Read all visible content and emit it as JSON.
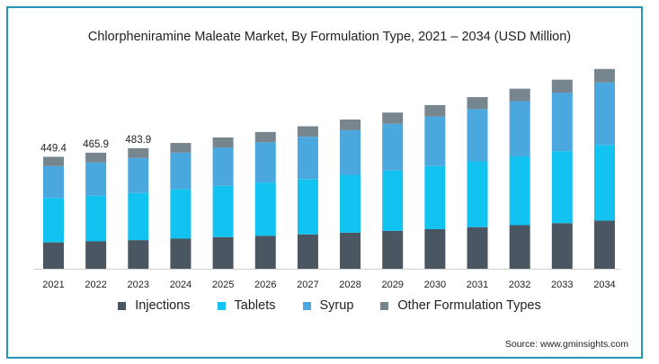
{
  "chart_data": {
    "type": "bar",
    "stacked": true,
    "title": "Chlorpheniramine Maleate Market, By Formulation Type, 2021 – 2034 (USD Million)",
    "categories": [
      "2021",
      "2022",
      "2023",
      "2024",
      "2025",
      "2026",
      "2027",
      "2028",
      "2029",
      "2030",
      "2031",
      "2032",
      "2033",
      "2034"
    ],
    "series": [
      {
        "name": "Injections",
        "color": "#4a5661",
        "values": [
          106,
          110,
          115,
          121,
          127,
          132,
          138,
          145,
          152,
          159,
          167,
          175,
          183,
          193
        ]
      },
      {
        "name": "Tablets",
        "color": "#12c2f0",
        "values": [
          178,
          183,
          189,
          198,
          206,
          214,
          222,
          232,
          242,
          253,
          264,
          276,
          289,
          304
        ]
      },
      {
        "name": "Syrup",
        "color": "#4aa8de",
        "values": [
          128,
          134,
          141,
          147,
          154,
          162,
          170,
          179,
          188,
          199,
          210,
          222,
          235,
          251
        ]
      },
      {
        "name": "Other Formulation Types",
        "color": "#77858e",
        "values": [
          37.4,
          38.9,
          38.9,
          39,
          40,
          41,
          42,
          43,
          45,
          46,
          48,
          50,
          52,
          54
        ]
      }
    ],
    "data_labels": [
      {
        "category": "2021",
        "text": "449.4"
      },
      {
        "category": "2022",
        "text": "465.9"
      },
      {
        "category": "2023",
        "text": "483.9"
      }
    ],
    "ylim": [
      0,
      830
    ],
    "grid": false,
    "legend_position": "bottom"
  },
  "source": "Source: www.gminsights.com"
}
